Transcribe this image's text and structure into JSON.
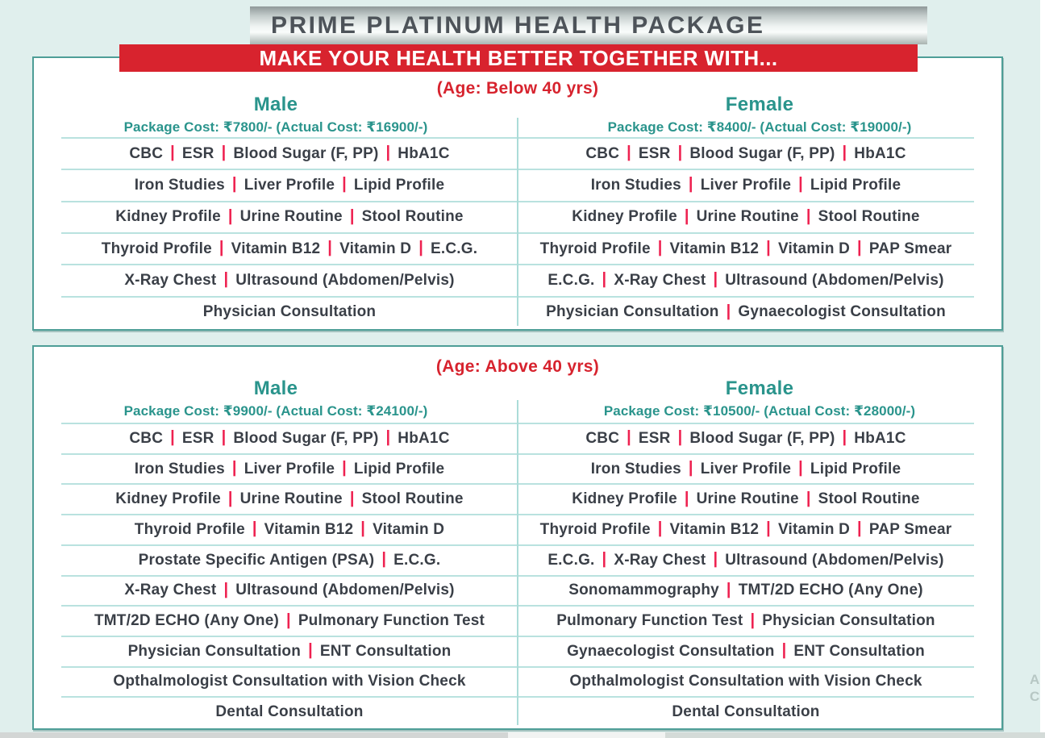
{
  "header": {
    "title": "PRIME PLATINUM HEALTH PACKAGE",
    "banner": "MAKE YOUR HEALTH BETTER TOGETHER WITH..."
  },
  "colors": {
    "banner_red": "#d8232e",
    "age_red": "#d7232e",
    "teal_text": "#2a948c",
    "table_border_teal": "#4e9e97",
    "row_line_teal": "#b9e2df",
    "pipe_pink": "#ee2150",
    "body_text": "#3a3f47",
    "page_background": "#e0efed"
  },
  "sections": [
    {
      "age_label": "(Age: Below 40 yrs)",
      "columns": [
        {
          "gender": "Male",
          "cost": "Package Cost: ₹7800/- (Actual Cost: ₹16900/-)",
          "rows": [
            [
              "CBC",
              "ESR",
              "Blood Sugar (F, PP)",
              "HbA1C"
            ],
            [
              "Iron Studies",
              "Liver Profile",
              "Lipid Profile"
            ],
            [
              "Kidney Profile",
              "Urine Routine",
              "Stool Routine"
            ],
            [
              "Thyroid Profile",
              "Vitamin B12",
              "Vitamin D",
              "E.C.G."
            ],
            [
              "X-Ray Chest",
              "Ultrasound (Abdomen/Pelvis)"
            ],
            [
              "Physician Consultation"
            ]
          ]
        },
        {
          "gender": "Female",
          "cost": "Package Cost: ₹8400/- (Actual Cost: ₹19000/-)",
          "rows": [
            [
              "CBC",
              "ESR",
              "Blood Sugar (F, PP)",
              "HbA1C"
            ],
            [
              "Iron Studies",
              "Liver Profile",
              "Lipid Profile"
            ],
            [
              "Kidney Profile",
              "Urine Routine",
              "Stool Routine"
            ],
            [
              "Thyroid Profile",
              "Vitamin B12",
              "Vitamin D",
              "PAP Smear"
            ],
            [
              "E.C.G.",
              "X-Ray Chest",
              "Ultrasound (Abdomen/Pelvis)"
            ],
            [
              "Physician Consultation",
              "Gynaecologist Consultation"
            ]
          ]
        }
      ]
    },
    {
      "age_label": "(Age: Above 40 yrs)",
      "columns": [
        {
          "gender": "Male",
          "cost": "Package Cost: ₹9900/- (Actual Cost: ₹24100/-)",
          "rows": [
            [
              "CBC",
              "ESR",
              "Blood Sugar (F, PP)",
              "HbA1C"
            ],
            [
              "Iron Studies",
              "Liver Profile",
              "Lipid Profile"
            ],
            [
              "Kidney Profile",
              "Urine Routine",
              "Stool Routine"
            ],
            [
              "Thyroid Profile",
              "Vitamin B12",
              "Vitamin D"
            ],
            [
              "Prostate Specific Antigen (PSA)",
              "E.C.G."
            ],
            [
              "X-Ray Chest",
              "Ultrasound (Abdomen/Pelvis)"
            ],
            [
              "TMT/2D ECHO (Any One)",
              "Pulmonary Function Test"
            ],
            [
              "Physician Consultation",
              "ENT Consultation"
            ],
            [
              "Opthalmologist Consultation with Vision Check"
            ],
            [
              "Dental Consultation"
            ]
          ]
        },
        {
          "gender": "Female",
          "cost": "Package Cost: ₹10500/- (Actual Cost: ₹28000/-)",
          "rows": [
            [
              "CBC",
              "ESR",
              "Blood Sugar (F, PP)",
              "HbA1C"
            ],
            [
              "Iron Studies",
              "Liver Profile",
              "Lipid Profile"
            ],
            [
              "Kidney Profile",
              "Urine Routine",
              "Stool Routine"
            ],
            [
              "Thyroid Profile",
              "Vitamin B12",
              "Vitamin D",
              "PAP Smear"
            ],
            [
              "E.C.G.",
              "X-Ray Chest",
              "Ultrasound (Abdomen/Pelvis)"
            ],
            [
              "Sonomammography",
              "TMT/2D ECHO (Any One)"
            ],
            [
              "Pulmonary Function Test",
              "Physician Consultation"
            ],
            [
              "Gynaecologist Consultation",
              "ENT Consultation"
            ],
            [
              "Opthalmologist Consultation with Vision Check"
            ],
            [
              "Dental Consultation"
            ]
          ]
        }
      ]
    }
  ],
  "edge_marks": [
    "A",
    "C"
  ]
}
